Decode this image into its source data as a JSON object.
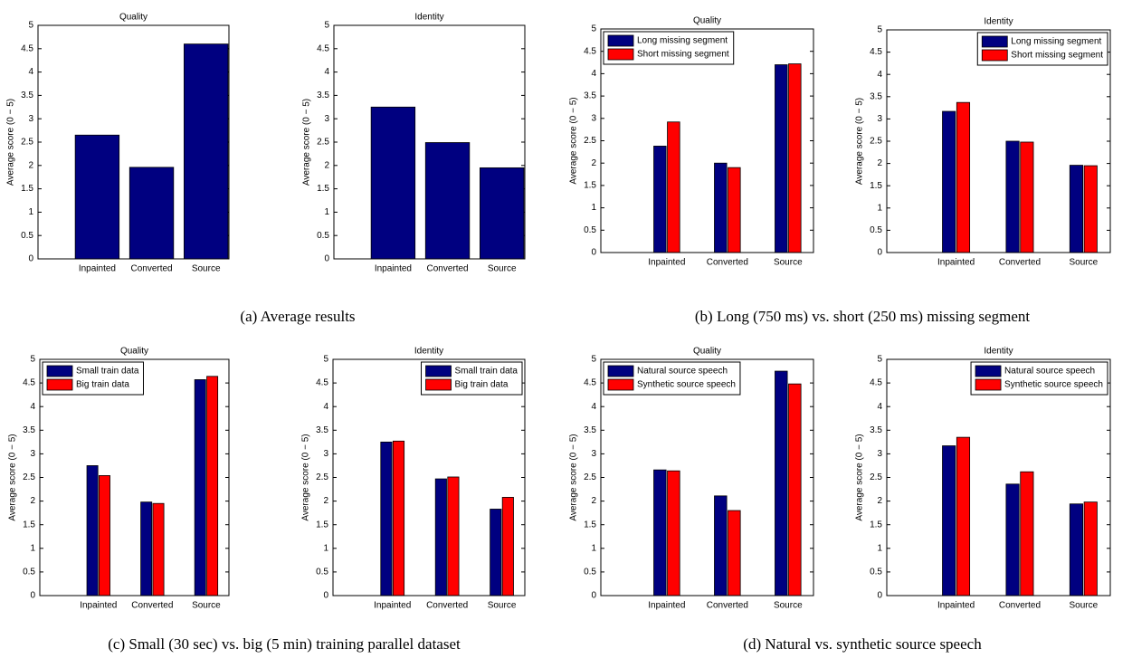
{
  "chart_data": [
    {
      "type": "bar",
      "title": "Quality",
      "ylabel": "Average score (0 − 5)",
      "categories": [
        "Inpainted",
        "Converted",
        "Source"
      ],
      "values": [
        2.65,
        1.96,
        4.6
      ],
      "color": "#000080",
      "ylim": [
        0,
        5
      ],
      "yticks": [
        0,
        0.5,
        1,
        1.5,
        2,
        2.5,
        3,
        3.5,
        4,
        4.5,
        5
      ]
    },
    {
      "type": "bar",
      "title": "Identity",
      "ylabel": "Average score (0 − 5)",
      "categories": [
        "Inpainted",
        "Converted",
        "Source"
      ],
      "values": [
        3.25,
        2.49,
        1.95
      ],
      "color": "#000080",
      "ylim": [
        0,
        5
      ],
      "yticks": [
        0,
        0.5,
        1,
        1.5,
        2,
        2.5,
        3,
        3.5,
        4,
        4.5,
        5
      ]
    },
    {
      "type": "bar",
      "title": "Quality",
      "ylabel": "Average score (0 − 5)",
      "categories": [
        "Inpainted",
        "Converted",
        "Source"
      ],
      "series": [
        {
          "name": "Long missing segment",
          "color": "#000080",
          "values": [
            2.38,
            2.0,
            4.2
          ]
        },
        {
          "name": "Short missing segment",
          "color": "#ff0000",
          "values": [
            2.92,
            1.9,
            4.22
          ]
        }
      ],
      "legend": "upper left",
      "ylim": [
        0,
        5
      ],
      "yticks": [
        0,
        0.5,
        1,
        1.5,
        2,
        2.5,
        3,
        3.5,
        4,
        4.5,
        5
      ]
    },
    {
      "type": "bar",
      "title": "Identity",
      "ylabel": "Average score (0 − 5)",
      "categories": [
        "Inpainted",
        "Converted",
        "Source"
      ],
      "series": [
        {
          "name": "Long missing segment",
          "color": "#000080",
          "values": [
            3.17,
            2.5,
            1.96
          ]
        },
        {
          "name": "Short missing segment",
          "color": "#ff0000",
          "values": [
            3.37,
            2.48,
            1.95
          ]
        }
      ],
      "legend": "upper right",
      "ylim": [
        0,
        5
      ],
      "yticks": [
        0,
        0.5,
        1,
        1.5,
        2,
        2.5,
        3,
        3.5,
        4,
        4.5,
        5
      ]
    },
    {
      "type": "bar",
      "title": "Quality",
      "ylabel": "Average score (0 − 5)",
      "categories": [
        "Inpainted",
        "Converted",
        "Source"
      ],
      "series": [
        {
          "name": "Small train data",
          "color": "#000080",
          "values": [
            2.75,
            1.98,
            4.57
          ]
        },
        {
          "name": "Big train data",
          "color": "#ff0000",
          "values": [
            2.54,
            1.95,
            4.64
          ]
        }
      ],
      "legend": "upper left",
      "ylim": [
        0,
        5
      ],
      "yticks": [
        0,
        0.5,
        1,
        1.5,
        2,
        2.5,
        3,
        3.5,
        4,
        4.5,
        5
      ]
    },
    {
      "type": "bar",
      "title": "Identity",
      "ylabel": "Average score (0 − 5)",
      "categories": [
        "Inpainted",
        "Converted",
        "Source"
      ],
      "series": [
        {
          "name": "Small train data",
          "color": "#000080",
          "values": [
            3.25,
            2.47,
            1.83
          ]
        },
        {
          "name": "Big train data",
          "color": "#ff0000",
          "values": [
            3.27,
            2.51,
            2.08
          ]
        }
      ],
      "legend": "upper right",
      "ylim": [
        0,
        5
      ],
      "yticks": [
        0,
        0.5,
        1,
        1.5,
        2,
        2.5,
        3,
        3.5,
        4,
        4.5,
        5
      ]
    },
    {
      "type": "bar",
      "title": "Quality",
      "ylabel": "Average score (0 − 5)",
      "categories": [
        "Inpainted",
        "Converted",
        "Source"
      ],
      "series": [
        {
          "name": "Natural source speech",
          "color": "#000080",
          "values": [
            2.66,
            2.11,
            4.75
          ]
        },
        {
          "name": "Synthetic source speech",
          "color": "#ff0000",
          "values": [
            2.64,
            1.8,
            4.48
          ]
        }
      ],
      "legend": "upper left",
      "ylim": [
        0,
        5
      ],
      "yticks": [
        0,
        0.5,
        1,
        1.5,
        2,
        2.5,
        3,
        3.5,
        4,
        4.5,
        5
      ]
    },
    {
      "type": "bar",
      "title": "Identity",
      "ylabel": "Average score (0 − 5)",
      "categories": [
        "Inpainted",
        "Converted",
        "Source"
      ],
      "series": [
        {
          "name": "Natural source speech",
          "color": "#000080",
          "values": [
            3.17,
            2.36,
            1.94
          ]
        },
        {
          "name": "Synthetic source speech",
          "color": "#ff0000",
          "values": [
            3.35,
            2.62,
            1.98
          ]
        }
      ],
      "legend": "upper right",
      "ylim": [
        0,
        5
      ],
      "yticks": [
        0,
        0.5,
        1,
        1.5,
        2,
        2.5,
        3,
        3.5,
        4,
        4.5,
        5
      ]
    }
  ],
  "captions": [
    "(a) Average results",
    "(b) Long (750 ms) vs. short (250 ms) missing segment",
    "(c) Small (30 sec) vs. big (5 min) training parallel dataset",
    "(d) Natural vs. synthetic source speech"
  ]
}
